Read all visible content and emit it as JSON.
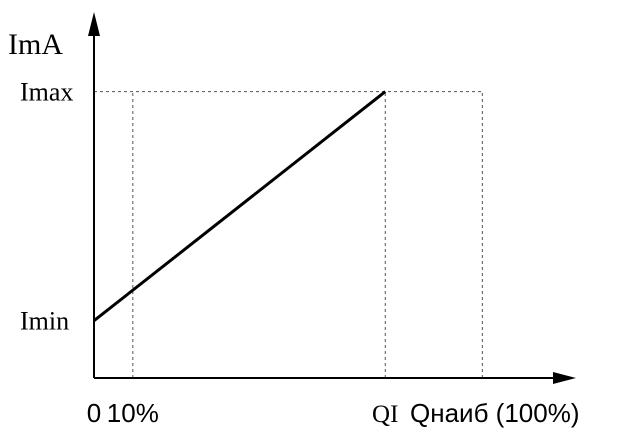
{
  "chart_data": {
    "type": "line",
    "ylabel": "ImA",
    "xlabel": "",
    "x_ticks": [
      {
        "x": 0,
        "label": "0",
        "guide": false
      },
      {
        "x": 10,
        "label": "10%",
        "guide": true
      },
      {
        "x": 75,
        "label": "QI",
        "guide": true
      },
      {
        "x": 100,
        "label": "Qнаиб (100%)",
        "guide": true
      }
    ],
    "y_ticks": [
      {
        "y": 4,
        "label": "Imin",
        "guide": false
      },
      {
        "y": 20,
        "label": "Imax",
        "guide": true
      }
    ],
    "series": [
      {
        "points": [
          {
            "x": 0,
            "y": 4
          },
          {
            "x": 75,
            "y": 20
          }
        ]
      }
    ],
    "xlim": [
      0,
      120
    ],
    "ylim": [
      0,
      25
    ],
    "grid": false,
    "colors": {
      "axis": "#000000",
      "line": "#000000",
      "guide": "#555555"
    }
  }
}
